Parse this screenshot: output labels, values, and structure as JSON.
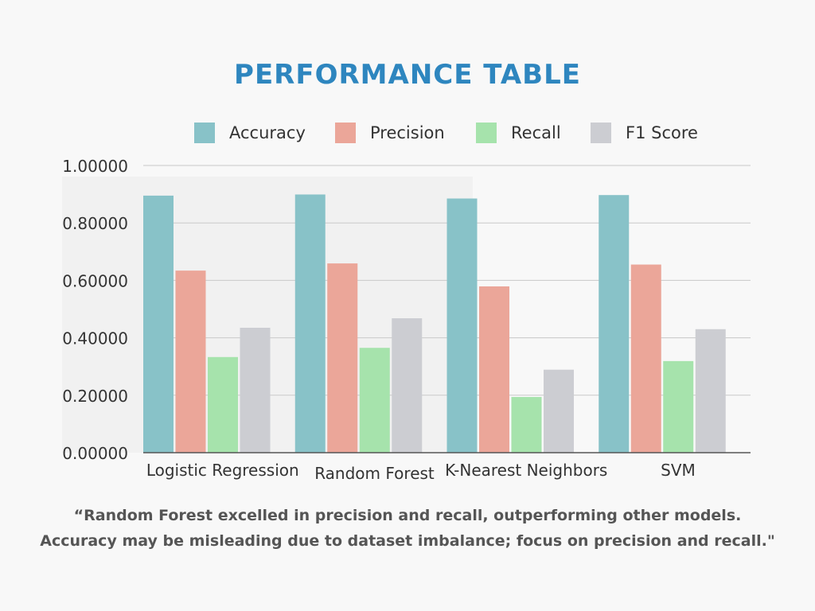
{
  "title": "PERFORMANCE TABLE",
  "chart_data": {
    "type": "bar",
    "title": "PERFORMANCE TABLE",
    "categories": [
      "Logistic Regression",
      "Random Forest",
      "K-Nearest Neighbors",
      "SVM"
    ],
    "series": [
      {
        "name": "Accuracy",
        "color": "#88c2c8",
        "values": [
          0.895,
          0.899,
          0.885,
          0.897
        ]
      },
      {
        "name": "Precision",
        "color": "#eba699",
        "values": [
          0.634,
          0.659,
          0.579,
          0.655
        ]
      },
      {
        "name": "Recall",
        "color": "#a6e3ac",
        "values": [
          0.333,
          0.365,
          0.194,
          0.319
        ]
      },
      {
        "name": "F1 Score",
        "color": "#cccdd2",
        "values": [
          0.435,
          0.468,
          0.289,
          0.43
        ]
      }
    ],
    "ylim": [
      0,
      1
    ],
    "yticks": [
      "0.00000",
      "0.20000",
      "0.40000",
      "0.60000",
      "0.80000",
      "1.00000"
    ],
    "xlabel": "",
    "ylabel": "",
    "grid": true,
    "legend_position": "top"
  },
  "footer": {
    "line1": "“Random Forest excelled in precision and recall, outperforming other models.",
    "line2": "Accuracy may be misleading due to dataset imbalance; focus on precision and recall.\""
  }
}
